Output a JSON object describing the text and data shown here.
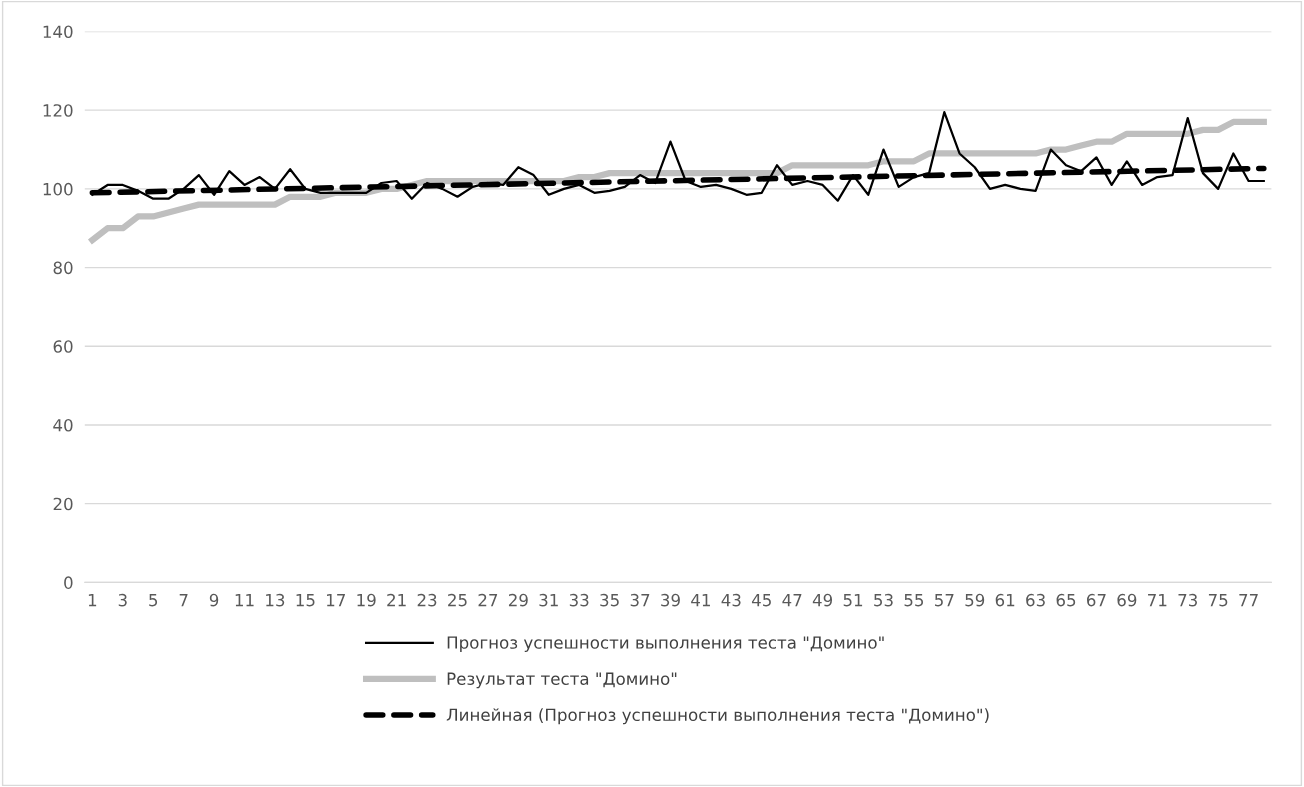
{
  "chart_data": {
    "type": "line",
    "x": [
      1,
      2,
      3,
      4,
      5,
      6,
      7,
      8,
      9,
      10,
      11,
      12,
      13,
      14,
      15,
      16,
      17,
      18,
      19,
      20,
      21,
      22,
      23,
      24,
      25,
      26,
      27,
      28,
      29,
      30,
      31,
      32,
      33,
      34,
      35,
      36,
      37,
      38,
      39,
      40,
      41,
      42,
      43,
      44,
      45,
      46,
      47,
      48,
      49,
      50,
      51,
      52,
      53,
      54,
      55,
      56,
      57,
      58,
      59,
      60,
      61,
      62,
      63,
      64,
      65,
      66,
      67,
      68,
      69,
      70,
      71,
      72,
      73,
      74,
      75,
      76,
      77,
      78
    ],
    "xlim": [
      0.5,
      78.5
    ],
    "xticks": [
      1,
      3,
      5,
      7,
      9,
      11,
      13,
      15,
      17,
      19,
      21,
      23,
      25,
      27,
      29,
      31,
      33,
      35,
      37,
      39,
      41,
      43,
      45,
      47,
      49,
      51,
      53,
      55,
      57,
      59,
      61,
      63,
      65,
      67,
      69,
      71,
      73,
      75,
      77
    ],
    "ylim": [
      0,
      140
    ],
    "yticks": [
      0,
      20,
      40,
      60,
      80,
      100,
      120,
      140
    ],
    "grid": "y",
    "legend": "bottom",
    "marker": "none",
    "series": [
      {
        "name": "Прогноз успешности выполнения теста \"Домино\"",
        "color": "#000000",
        "line_style": "solid",
        "values": [
          98.5,
          101,
          101,
          99.5,
          97.5,
          97.5,
          100,
          103.5,
          98.5,
          104.5,
          101,
          103,
          100,
          105,
          100,
          99,
          99,
          99,
          99,
          101.5,
          102,
          97.5,
          101.5,
          100,
          98,
          100.5,
          101.5,
          101,
          105.5,
          103.5,
          98.5,
          100,
          101,
          99,
          99.5,
          100.5,
          103.5,
          101.5,
          112,
          102,
          100.5,
          101,
          100,
          98.5,
          99,
          106,
          101,
          102,
          101,
          97,
          103.5,
          98.5,
          110,
          100.5,
          103,
          104,
          119.5,
          109,
          105.5,
          100,
          101,
          100,
          99.5,
          110,
          106,
          104.5,
          108,
          101,
          107,
          101,
          103,
          103.5,
          118,
          104,
          100,
          109,
          102,
          102
        ]
      },
      {
        "name": "Результат теста \"Домино\"",
        "color": "#bfbfbf",
        "line_style": "solid",
        "values": [
          87,
          90,
          90,
          93,
          93,
          94,
          95,
          96,
          96,
          96,
          96,
          96,
          96,
          98,
          98,
          98,
          99,
          99,
          99,
          100,
          100,
          101,
          102,
          102,
          102,
          102,
          102,
          102,
          102,
          102,
          102,
          102,
          103,
          103,
          104,
          104,
          104,
          104,
          104,
          104,
          104,
          104,
          104,
          104,
          104,
          104,
          106,
          106,
          106,
          106,
          106,
          106,
          107,
          107,
          107,
          109,
          109,
          109,
          109,
          109,
          109,
          109,
          109,
          110,
          110,
          111,
          112,
          112,
          114,
          114,
          114,
          114,
          114,
          115,
          115,
          117,
          117,
          117
        ]
      },
      {
        "name": "Линейная (Прогноз успешности выполнения теста \"Домино\")",
        "color": "#000000",
        "line_style": "dashed",
        "x": [
          1,
          78
        ],
        "values": [
          99,
          105.2
        ]
      }
    ]
  }
}
